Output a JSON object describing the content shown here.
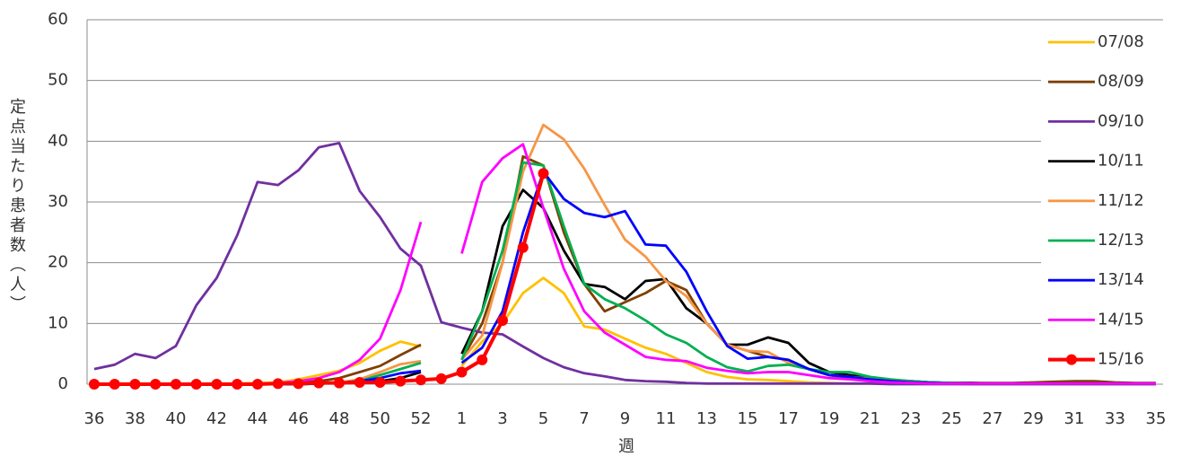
{
  "chart_data": {
    "type": "line",
    "ylabel": "定点当たり患者数（人）",
    "xlabel": "週",
    "categories": [
      "36",
      null,
      "38",
      null,
      "40",
      null,
      "42",
      null,
      "44",
      null,
      "46",
      null,
      "48",
      null,
      "50",
      null,
      "52",
      null,
      "1",
      null,
      "3",
      null,
      "5",
      null,
      "7",
      null,
      "9",
      null,
      "11",
      null,
      "13",
      null,
      "15",
      null,
      "17",
      null,
      "19",
      null,
      "21",
      null,
      "23",
      null,
      "25",
      null,
      "27",
      null,
      "29",
      null,
      "31",
      null,
      "33",
      null,
      "35"
    ],
    "ylim": [
      0,
      60
    ],
    "yticks": [
      0,
      10,
      20,
      30,
      40,
      50,
      60
    ],
    "grid": true,
    "legend": "right",
    "series": [
      {
        "name": "07/08",
        "color": "#ffc000",
        "values": [
          0,
          0,
          0,
          0,
          0,
          0,
          0.1,
          0.1,
          0.2,
          0.3,
          0.8,
          1.5,
          2.2,
          3.5,
          5.5,
          7,
          6.2,
          null,
          3,
          7,
          10,
          15,
          17.5,
          15,
          9.5,
          9,
          7.5,
          6,
          5,
          3.5,
          2,
          1.2,
          0.8,
          0.7,
          0.5,
          0.3,
          0.2,
          0.1,
          0.1,
          0.1,
          0.1,
          0.1,
          0.1,
          0,
          0,
          0,
          0,
          0,
          0,
          0,
          0,
          0,
          0
        ]
      },
      {
        "name": "08/09",
        "color": "#7f3f00",
        "values": [
          0,
          0,
          0,
          0,
          0,
          0,
          0,
          0,
          0,
          0.1,
          0.3,
          0.5,
          1,
          2,
          3,
          4.8,
          6.5,
          null,
          4,
          10,
          20,
          37.5,
          36,
          25,
          16.5,
          12,
          13.5,
          15,
          17,
          15.5,
          10,
          6.5,
          5.5,
          4.5,
          4,
          2.5,
          1.5,
          1,
          0.7,
          0.5,
          0.4,
          0.3,
          0.2,
          0.2,
          0.2,
          0.2,
          0.3,
          0.4,
          0.5,
          0.5,
          0.3,
          0.2,
          0.2
        ]
      },
      {
        "name": "09/10",
        "color": "#7030a0",
        "values": [
          2.5,
          3.2,
          5,
          4.3,
          6.3,
          13,
          17.5,
          24.5,
          33.3,
          32.8,
          35.2,
          39,
          39.7,
          31.8,
          27.5,
          22.3,
          19.5,
          10.2,
          9.3,
          8.5,
          8.2,
          6.2,
          4.3,
          2.8,
          1.8,
          1.3,
          0.7,
          0.5,
          0.4,
          0.2,
          0.1,
          0.1,
          0.1,
          0.1,
          0.1,
          0.1,
          0.1,
          0.1,
          0.1,
          0,
          0,
          0,
          0,
          0,
          0,
          0,
          0,
          0,
          0,
          0,
          0,
          0,
          0
        ]
      },
      {
        "name": "10/11",
        "color": "#000000",
        "values": [
          0,
          0,
          0,
          0,
          0,
          0,
          0,
          0,
          0,
          0,
          0,
          0.1,
          0.2,
          0.3,
          0.5,
          1,
          2,
          null,
          5,
          12,
          26,
          32,
          29,
          22,
          16.5,
          16,
          14,
          17,
          17.3,
          12.5,
          10,
          6.5,
          6.5,
          7.7,
          6.8,
          3.5,
          2,
          1.5,
          1,
          0.7,
          0.5,
          0.3,
          0.2,
          0.2,
          0.1,
          0.1,
          0.1,
          0.1,
          0.1,
          0.1,
          0.1,
          0.1,
          0.1
        ]
      },
      {
        "name": "11/12",
        "color": "#f79646",
        "values": [
          0,
          0,
          0,
          0,
          0,
          0,
          0,
          0,
          0,
          0,
          0,
          0.1,
          0.3,
          0.8,
          2,
          3.3,
          3.8,
          null,
          4,
          8,
          20,
          35,
          42.7,
          40.3,
          35.5,
          29.5,
          23.8,
          21,
          17,
          14.5,
          10,
          6.5,
          5.5,
          5.3,
          3.5,
          2.5,
          1.5,
          1.2,
          0.9,
          0.6,
          0.4,
          0.2,
          0.1,
          0.1,
          0.1,
          0.1,
          0.1,
          0.1,
          0.1,
          0.1,
          0.1,
          0.1,
          0.1
        ]
      },
      {
        "name": "12/13",
        "color": "#00b050",
        "values": [
          0,
          0,
          0,
          0,
          0,
          0,
          0,
          0,
          0,
          0,
          0,
          0.1,
          0.2,
          0.5,
          1.5,
          2.5,
          3.5,
          null,
          4,
          12,
          22,
          36.5,
          36,
          26,
          16.5,
          14,
          12.5,
          10.5,
          8.2,
          6.8,
          4.5,
          2.8,
          2.1,
          3,
          3.2,
          2.5,
          2,
          2,
          1.2,
          0.8,
          0.5,
          0.3,
          0.2,
          0.1,
          0.1,
          0.1,
          0.1,
          0.1,
          0.1,
          0.1,
          0.1,
          0.1,
          0.1
        ]
      },
      {
        "name": "13/14",
        "color": "#0000ff",
        "values": [
          0,
          0,
          0,
          0,
          0,
          0,
          0,
          0,
          0,
          0,
          0,
          0.1,
          0.2,
          0.5,
          1,
          1.8,
          2.2,
          null,
          3.5,
          6,
          12,
          25,
          35,
          30.5,
          28.2,
          27.5,
          28.5,
          23,
          22.8,
          18.5,
          12,
          6.3,
          4.2,
          4.5,
          4,
          2.5,
          1.5,
          1.2,
          0.8,
          0.5,
          0.3,
          0.2,
          0.1,
          0.1,
          0.1,
          0.1,
          0.1,
          0.1,
          0.1,
          0.1,
          0.1,
          0.1,
          0.1
        ]
      },
      {
        "name": "14/15",
        "color": "#ff00ff",
        "values": [
          0,
          0,
          0,
          0,
          0,
          0,
          0,
          0,
          0,
          0.2,
          0.5,
          1,
          2,
          4,
          7.5,
          15.5,
          26.7,
          null,
          21.5,
          33.3,
          37.2,
          39.5,
          29,
          19,
          12,
          8.5,
          6.5,
          4.5,
          4,
          3.8,
          2.7,
          2.2,
          1.8,
          2,
          2,
          1.5,
          1,
          0.8,
          0.5,
          0.3,
          0.2,
          0.1,
          0.1,
          0.1,
          0.1,
          0.1,
          0.1,
          0.1,
          0.1,
          0.1,
          0.1,
          0.1,
          0.1
        ]
      },
      {
        "name": "15/16",
        "color": "#ff0000",
        "markers": true,
        "values": [
          0,
          0,
          0,
          0,
          0,
          0,
          0,
          0,
          0,
          0.1,
          0.1,
          0.2,
          0.2,
          0.3,
          0.3,
          0.5,
          0.7,
          0.9,
          2,
          4,
          10.5,
          22.5,
          34.7,
          null,
          null,
          null,
          null,
          null,
          null,
          null,
          null,
          null,
          null,
          null,
          null,
          null,
          null,
          null,
          null,
          null,
          null,
          null,
          null,
          null,
          null,
          null,
          null,
          null,
          null,
          null,
          null,
          null,
          null
        ]
      }
    ]
  }
}
